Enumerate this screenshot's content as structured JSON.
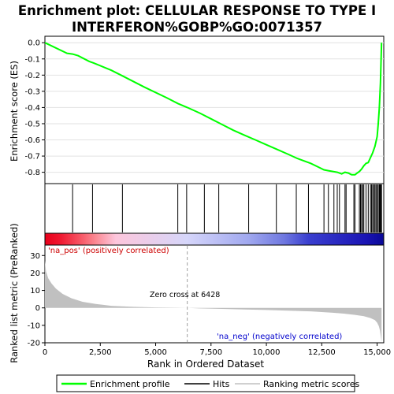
{
  "chart_data": {
    "type": "line",
    "title_line1": "Enrichment plot: CELLULAR RESPONSE TO TYPE I",
    "title_line2": "INTERFERON%GOBP%GO:0071357",
    "panels": {
      "enrichment": {
        "ylabel": "Enrichment score (ES)",
        "ylim": [
          -0.87,
          0.04
        ],
        "yticks": [
          0.0,
          -0.1,
          -0.2,
          -0.3,
          -0.4,
          -0.5,
          -0.6,
          -0.7,
          -0.8
        ],
        "ytick_labels": [
          "0.0",
          "-0.1",
          "-0.2",
          "-0.3",
          "-0.4",
          "-0.5",
          "-0.6",
          "-0.7",
          "-0.8"
        ],
        "series": [
          {
            "color": "#00ff00",
            "x": [
              0,
              1000,
              1250,
              1500,
              2000,
              2200,
              3000,
              3500,
              4500,
              5500,
              6000,
              6428,
              7000,
              7500,
              8000,
              8500,
              9000,
              9500,
              10000,
              10500,
              11000,
              11400,
              11700,
              12000,
              12300,
              12600,
              12800,
              13000,
              13200,
              13400,
              13550,
              13700,
              13850,
              14000,
              14100,
              14200,
              14300,
              14400,
              14500,
              14600,
              14700,
              14800,
              14900,
              15000,
              15050,
              15100,
              15150,
              15200
            ],
            "y": [
              0.0,
              -0.065,
              -0.07,
              -0.08,
              -0.115,
              -0.125,
              -0.17,
              -0.205,
              -0.275,
              -0.34,
              -0.375,
              -0.4,
              -0.435,
              -0.47,
              -0.505,
              -0.54,
              -0.57,
              -0.6,
              -0.63,
              -0.66,
              -0.69,
              -0.715,
              -0.73,
              -0.745,
              -0.765,
              -0.785,
              -0.79,
              -0.795,
              -0.8,
              -0.81,
              -0.8,
              -0.805,
              -0.815,
              -0.815,
              -0.805,
              -0.795,
              -0.78,
              -0.76,
              -0.745,
              -0.74,
              -0.71,
              -0.68,
              -0.64,
              -0.58,
              -0.5,
              -0.4,
              -0.25,
              0.0
            ]
          }
        ]
      },
      "hits": {
        "positions": [
          1250,
          2150,
          3500,
          6000,
          6400,
          7200,
          7850,
          9200,
          10450,
          11350,
          11900,
          12600,
          12800,
          13050,
          13200,
          13300,
          13550,
          13600,
          13950,
          14000,
          14200,
          14250,
          14300,
          14350,
          14400,
          14500,
          14600,
          14700,
          14750,
          14800,
          14850,
          14900,
          14950,
          15000,
          15050,
          15100,
          15120,
          15150,
          15180,
          15200
        ]
      },
      "colorbar": {
        "stops": [
          {
            "x": 0,
            "color": "#e8001a"
          },
          {
            "x": 700,
            "color": "#f01830"
          },
          {
            "x": 1700,
            "color": "#f85c6a"
          },
          {
            "x": 2300,
            "color": "#fb8a94"
          },
          {
            "x": 3200,
            "color": "#fdc6dc"
          },
          {
            "x": 6400,
            "color": "#d6d6fa"
          },
          {
            "x": 9200,
            "color": "#a0a8ef"
          },
          {
            "x": 10800,
            "color": "#6f78e0"
          },
          {
            "x": 11900,
            "color": "#3a3fcf"
          },
          {
            "x": 14500,
            "color": "#1a14b4"
          },
          {
            "x": 15200,
            "color": "#0c0a9a"
          }
        ]
      },
      "ranked": {
        "ylabel": "Ranked list metric (PreRanked)",
        "ylim": [
          -20,
          36
        ],
        "yticks": [
          30,
          20,
          10,
          0,
          -10,
          -20
        ],
        "ytick_labels": [
          "30",
          "20",
          "10",
          "0",
          "-10",
          "-20"
        ],
        "profile": {
          "x": [
            0,
            50,
            150,
            300,
            500,
            800,
            1200,
            1700,
            2300,
            3000,
            4000,
            5000,
            6000,
            6428,
            7000,
            8000,
            9000,
            10000,
            11000,
            12000,
            12500,
            13000,
            13500,
            14000,
            14400,
            14700,
            14900,
            15000,
            15080,
            15130,
            15170,
            15200
          ],
          "y": [
            27,
            21,
            17,
            14,
            11,
            8,
            5.5,
            3.5,
            2.2,
            1.2,
            0.6,
            0.3,
            0.1,
            0.0,
            -0.3,
            -0.6,
            -0.9,
            -1.2,
            -1.6,
            -2.0,
            -2.4,
            -2.8,
            -3.3,
            -4.0,
            -4.8,
            -5.8,
            -7.0,
            -8.5,
            -10.5,
            -13.0,
            -16.5,
            -19.5
          ]
        },
        "zero_cross_label": "Zero cross at 6428",
        "zero_cross_x": 6428,
        "pos_label": "'na_pos' (positively correlated)",
        "neg_label": "'na_neg' (negatively correlated)"
      }
    },
    "xaxis": {
      "label": "Rank in Ordered Dataset",
      "xlim": [
        0,
        15300
      ],
      "ticks": [
        0,
        2500,
        5000,
        7500,
        10000,
        12500,
        15000
      ],
      "tick_labels": [
        "0",
        "2,500",
        "5,000",
        "7,500",
        "10,000",
        "12,500",
        "15,000"
      ]
    },
    "legend": {
      "items": [
        {
          "label": "Enrichment profile",
          "color": "#00ff00",
          "style": "line-thick"
        },
        {
          "label": "Hits",
          "color": "#000000",
          "style": "line"
        },
        {
          "label": "Ranking metric scores",
          "color": "#c0c0c0",
          "style": "line"
        }
      ]
    },
    "colors": {
      "enrichment": "#00ff00",
      "hits": "#000000",
      "ranked_fill": "#c0c0c0",
      "pos_text": "#cc0000",
      "neg_text": "#0000cc",
      "zero_line": "#a0a0a0"
    }
  }
}
